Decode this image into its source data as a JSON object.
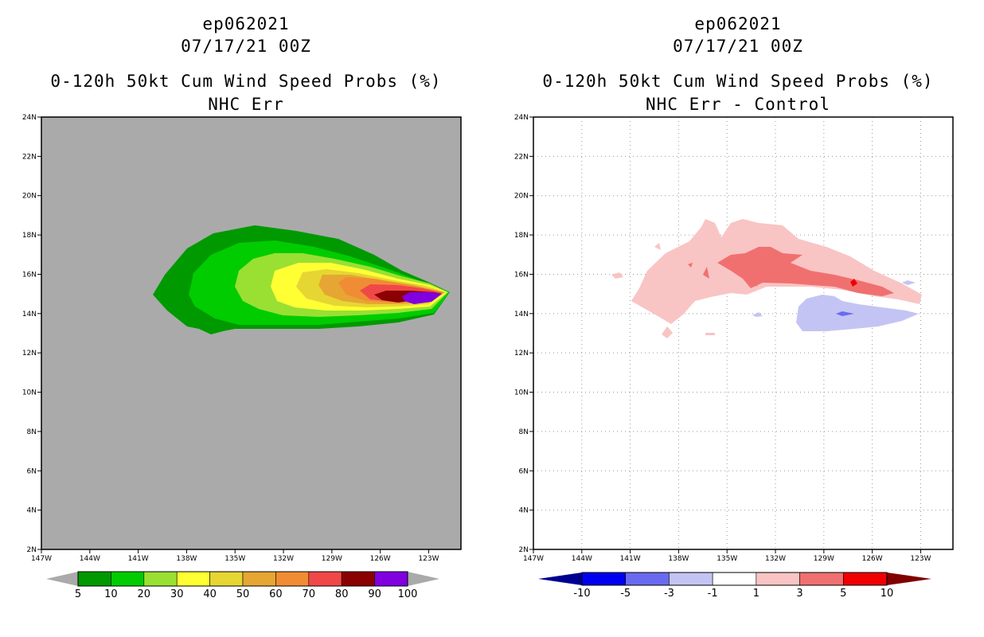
{
  "colors": {
    "land_gray": "#aaaaaa",
    "prob_scale": [
      "#009900",
      "#00cc00",
      "#99e033",
      "#ffff33",
      "#e6d633",
      "#e6a633",
      "#f08c33",
      "#f04848",
      "#8b0000",
      "#8000e0"
    ],
    "diff_scale": [
      "#000090",
      "#0000f0",
      "#6a6af0",
      "#c4c4f4",
      "#ffffff",
      "#f9c4c4",
      "#f07070",
      "#f00000",
      "#800000"
    ]
  },
  "panels": [
    {
      "storm_id": "ep062021",
      "datetime": "07/17/21 00Z",
      "product": "0-120h 50kt Cum Wind Speed Probs (%)",
      "subtitle": "NHC Err",
      "lat_labels": [
        "24N",
        "22N",
        "20N",
        "18N",
        "16N",
        "14N",
        "12N",
        "10N",
        "8N",
        "6N",
        "4N",
        "2N"
      ],
      "lon_labels": [
        "147W",
        "144W",
        "141W",
        "138W",
        "135W",
        "132W",
        "129W",
        "126W",
        "123W"
      ],
      "colorbar_labels": [
        "5",
        "10",
        "20",
        "30",
        "40",
        "50",
        "60",
        "70",
        "80",
        "90",
        "100"
      ]
    },
    {
      "storm_id": "ep062021",
      "datetime": "07/17/21 00Z",
      "product": "0-120h 50kt Cum Wind Speed Probs (%)",
      "subtitle": "NHC Err - Control",
      "lat_labels": [
        "24N",
        "22N",
        "20N",
        "18N",
        "16N",
        "14N",
        "12N",
        "10N",
        "8N",
        "6N",
        "4N",
        "2N"
      ],
      "lon_labels": [
        "147W",
        "144W",
        "141W",
        "138W",
        "135W",
        "132W",
        "129W",
        "126W",
        "123W"
      ],
      "colorbar_labels": [
        "-10",
        "-5",
        "-3",
        "-1",
        "1",
        "3",
        "5",
        "10"
      ]
    }
  ]
}
